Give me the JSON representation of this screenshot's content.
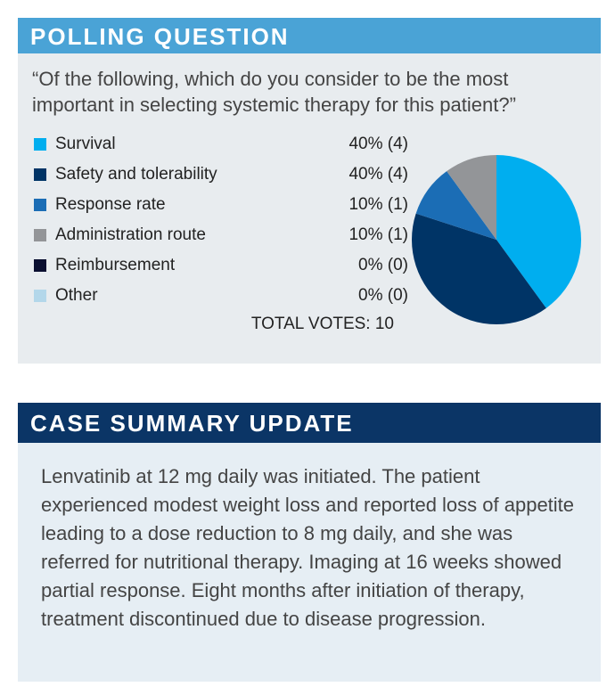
{
  "poll": {
    "title": "POLLING QUESTION",
    "question": "“Of the following, which do you consider to be the most important in selecting systemic therapy for this patient?”",
    "total_label": "TOTAL VOTES: 10"
  },
  "chart_data": {
    "type": "pie",
    "total_votes": 10,
    "legend": "left",
    "slices": [
      {
        "label": "Survival",
        "value": 40,
        "votes": 4,
        "display": "40% (4)",
        "color": "#00aeef"
      },
      {
        "label": "Safety and tolerability",
        "value": 40,
        "votes": 4,
        "display": "40% (4)",
        "color": "#003466"
      },
      {
        "label": "Response rate",
        "value": 10,
        "votes": 1,
        "display": "10% (1)",
        "color": "#1b6db5"
      },
      {
        "label": "Administration route",
        "value": 10,
        "votes": 1,
        "display": "10% (1)",
        "color": "#939598"
      },
      {
        "label": "Reimbursement",
        "value": 0,
        "votes": 0,
        "display": "0% (0)",
        "color": "#0a0f30"
      },
      {
        "label": "Other",
        "value": 0,
        "votes": 0,
        "display": "0% (0)",
        "color": "#b3d7ea"
      }
    ]
  },
  "summary": {
    "title": "CASE SUMMARY UPDATE",
    "text": "Lenvatinib at 12 mg daily was initiated. The patient experienced modest weight loss and reported loss of appetite leading to a dose reduction to 8 mg daily, and she was referred for nutritional therapy. Imaging at 16 weeks showed partial response. Eight months after initiation of therapy, treatment discontinued due to disease progression."
  }
}
